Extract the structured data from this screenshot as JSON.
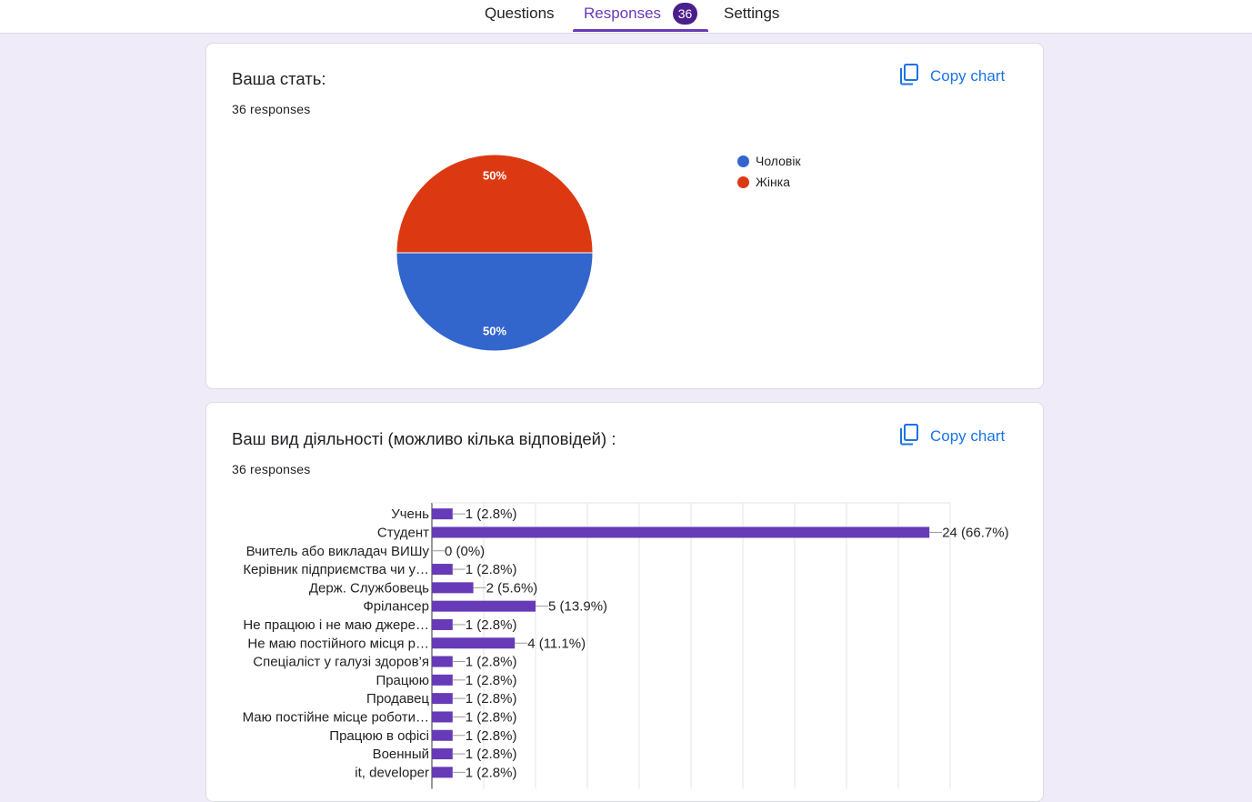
{
  "tabs": {
    "questions": "Questions",
    "responses": "Responses",
    "responses_count": "36",
    "settings": "Settings"
  },
  "colors": {
    "accent": "#673ab7",
    "link": "#1a73e8",
    "pie_male": "#3366cc",
    "pie_female": "#dc3912",
    "bar": "#673ab7"
  },
  "copy_icon": "copy-icon",
  "question1": {
    "title": "Ваша стать:",
    "responses": "36 responses",
    "copy_label": "Copy chart",
    "legend": [
      "Чоловік",
      "Жінка"
    ]
  },
  "question2": {
    "title": "Ваш вид діяльності (можливо кілька відповідей) :",
    "responses": "36 responses",
    "copy_label": "Copy chart"
  },
  "chart_data": [
    {
      "type": "pie",
      "labels": [
        "Чоловік",
        "Жінка"
      ],
      "values": [
        50,
        50
      ],
      "data_labels": [
        "50%",
        "50%"
      ],
      "legend_position": "right"
    },
    {
      "type": "bar",
      "orientation": "horizontal",
      "categories": [
        "Учень",
        "Студент",
        "Вчитель або викладач ВИШу",
        "Керівник підприємства чи у…",
        "Держ. Службовець",
        "Фрілансер",
        "Не працюю і не маю джере…",
        "Не маю постійного місця р…",
        "Спеціаліст у галузі здоров’я",
        "Працюю",
        "Продавец",
        "Маю постійне місце роботи…",
        "Працюю в офісі",
        "Военный",
        "it, developer"
      ],
      "values": [
        1,
        24,
        0,
        1,
        2,
        5,
        1,
        4,
        1,
        1,
        1,
        1,
        1,
        1,
        1
      ],
      "data_labels": [
        "1 (2.8%)",
        "24 (66.7%)",
        "0 (0%)",
        "1 (2.8%)",
        "2 (5.6%)",
        "5 (13.9%)",
        "1 (2.8%)",
        "4 (11.1%)",
        "1 (2.8%)",
        "1 (2.8%)",
        "1 (2.8%)",
        "1 (2.8%)",
        "1 (2.8%)",
        "1 (2.8%)",
        "1 (2.8%)"
      ],
      "xlim": [
        0,
        25
      ],
      "grid": true
    }
  ]
}
